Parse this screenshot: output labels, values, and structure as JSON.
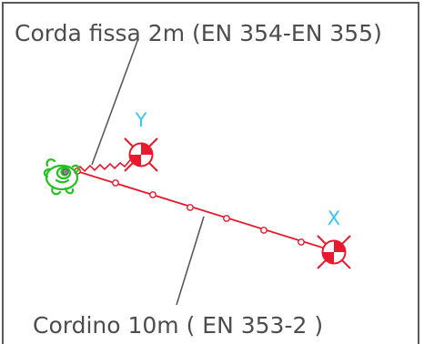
{
  "labels": {
    "fixed_rope": "Corda fissa 2m (EN 354-EN 355)",
    "lanyard": "Cordino 10m ( EN 353-2 )",
    "anchor_y": "Y",
    "anchor_x": "X"
  },
  "colors": {
    "frame": "#5a5a5a",
    "leader_line": "#5a5a5a",
    "rope": "#e8192c",
    "worker": "#22c21e",
    "anchor_label": "#35c8f0",
    "label_text": "#4d4d4d"
  },
  "icons": {
    "worker": "worker-top-view-icon",
    "anchor": "anchor-point-icon"
  }
}
